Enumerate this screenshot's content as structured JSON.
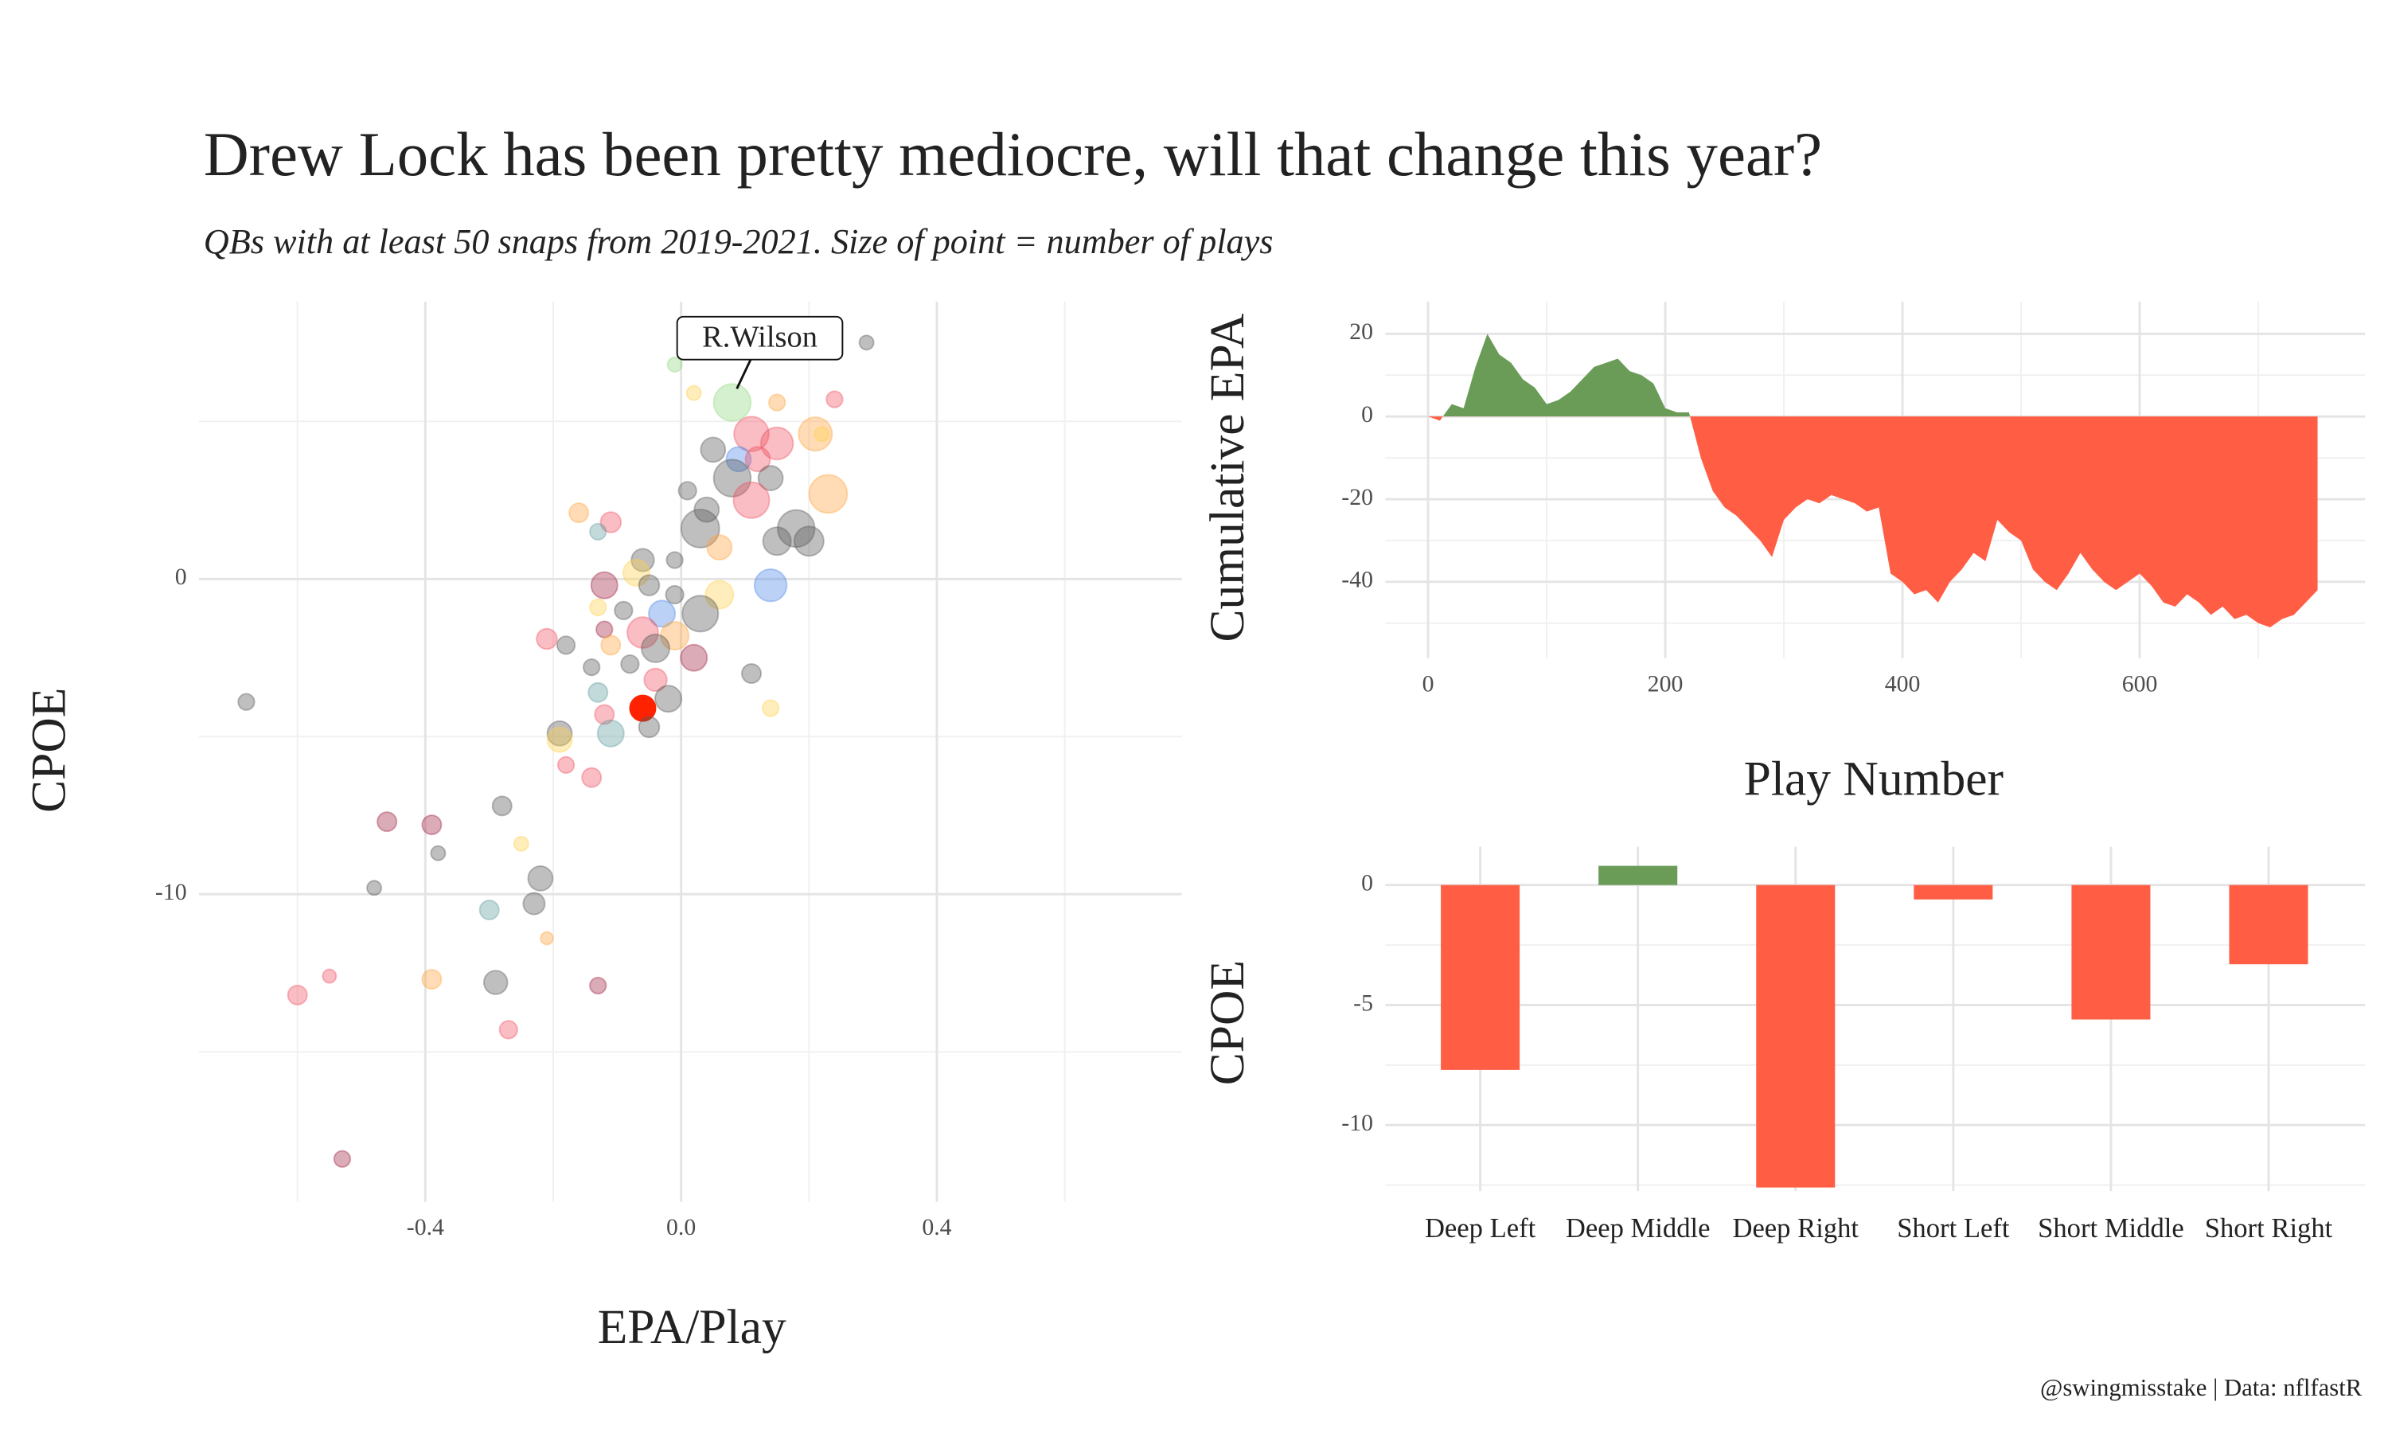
{
  "title": "Drew Lock has been pretty mediocre, will that change this year?",
  "subtitle": "QBs with at least 50 snaps from 2019-2021. Size of point = number of plays",
  "caption": "@swingmisstake | Data: nflfastR",
  "chart_data": [
    {
      "type": "scatter",
      "x_label": "EPA/Play",
      "y_label": "CPOE",
      "xlim": [
        -0.754,
        0.783
      ],
      "ylim": [
        -19.76,
        8.8
      ],
      "xticks": [
        -0.4,
        {
          "value": 0,
          "label": "0.0"
        },
        0.4
      ],
      "x_minor_ticks": [
        -0.6,
        -0.2,
        0.2,
        0.6
      ],
      "yticks": [
        0,
        -10
      ],
      "y_minor_ticks": [
        5,
        -5,
        -15
      ],
      "grid": true,
      "x": [
        0.29,
        -0.01,
        0.08,
        0.02,
        0.15,
        0.24,
        0.21,
        0.22,
        0.11,
        0.15,
        0.05,
        0.09,
        0.12,
        0.08,
        0.14,
        0.23,
        0.01,
        0.11,
        0.04,
        0.03,
        0.18,
        0.2,
        0.15,
        0.06,
        -0.11,
        -0.13,
        -0.16,
        -0.06,
        -0.07,
        -0.01,
        0.14,
        -0.12,
        -0.05,
        -0.01,
        0.06,
        -0.13,
        -0.09,
        0.03,
        -0.03,
        -0.06,
        -0.01,
        -0.12,
        -0.21,
        -0.18,
        -0.11,
        -0.04,
        0.02,
        -0.08,
        -0.14,
        0.11,
        -0.04,
        -0.02,
        -0.13,
        -0.06,
        -0.12,
        0.14,
        -0.05,
        -0.11,
        -0.19,
        -0.19,
        -0.68,
        -0.18,
        -0.14,
        -0.28,
        -0.25,
        -0.46,
        -0.39,
        -0.38,
        -0.22,
        -0.23,
        -0.48,
        -0.3,
        -0.21,
        -0.55,
        -0.39,
        -0.29,
        -0.13,
        -0.6,
        -0.27,
        -0.53
      ],
      "values": [
        7.5,
        6.8,
        5.6,
        5.9,
        5.6,
        5.7,
        4.6,
        4.6,
        4.6,
        4.3,
        4.1,
        3.8,
        3.8,
        3.2,
        3.2,
        2.7,
        2.8,
        2.5,
        2.2,
        1.6,
        1.6,
        1.2,
        1.2,
        1.0,
        1.8,
        1.5,
        2.1,
        0.6,
        0.2,
        0.6,
        -0.2,
        -0.2,
        -0.2,
        -0.5,
        -0.5,
        -0.9,
        -1.0,
        -1.1,
        -1.1,
        -1.7,
        -1.8,
        -1.6,
        -1.9,
        -2.1,
        -2.1,
        -2.2,
        -2.5,
        -2.7,
        -2.8,
        -3.0,
        -3.2,
        -3.8,
        -3.6,
        -4.1,
        -4.3,
        -4.1,
        -4.7,
        -4.9,
        -4.9,
        -5.1,
        -3.9,
        -5.9,
        -6.3,
        -7.2,
        -8.4,
        -7.7,
        -7.8,
        -8.7,
        -9.5,
        -10.3,
        -9.8,
        -10.5,
        -11.4,
        -12.6,
        -12.7,
        -12.8,
        -12.9,
        -13.2,
        -14.3,
        -18.4
      ],
      "sizes": [
        100,
        100,
        1400,
        100,
        150,
        150,
        1100,
        100,
        1200,
        1000,
        500,
        500,
        500,
        1400,
        500,
        1500,
        200,
        1300,
        500,
        1500,
        1400,
        800,
        700,
        500,
        300,
        150,
        250,
        400,
        600,
        150,
        1000,
        600,
        300,
        200,
        700,
        150,
        200,
        1300,
        600,
        900,
        700,
        150,
        300,
        200,
        250,
        700,
        600,
        200,
        150,
        250,
        400,
        600,
        250,
        550,
        250,
        150,
        300,
        600,
        500,
        500,
        150,
        150,
        250,
        250,
        100,
        250,
        250,
        100,
        500,
        350,
        100,
        250,
        60,
        80,
        250,
        450,
        150,
        250,
        200,
        150
      ],
      "colors": [
        "#55555560",
        "#8fd67f60",
        "#8fd67f60",
        "#ffd04a60",
        "#ffa33a60",
        "#f0506060",
        "#ffa33a60",
        "#ffd04a60",
        "#f0506060",
        "#f0506060",
        "#55555560",
        "#4a86e860",
        "#f0506060",
        "#55555560",
        "#55555560",
        "#ffa33a60",
        "#55555560",
        "#f0506060",
        "#55555560",
        "#55555560",
        "#55555560",
        "#55555560",
        "#55555560",
        "#ffa33a60",
        "#f0506060",
        "#5f9ea060",
        "#ffa33a60",
        "#55555560",
        "#ffd04a60",
        "#55555560",
        "#4a86e860",
        "#a0204060",
        "#55555560",
        "#55555560",
        "#ffd04a60",
        "#ffd04a60",
        "#55555560",
        "#55555560",
        "#4a86e860",
        "#f0506060",
        "#ffa33a60",
        "#a0204060",
        "#f0506060",
        "#55555560",
        "#ffa33a60",
        "#55555560",
        "#a0204060",
        "#55555560",
        "#55555560",
        "#55555560",
        "#f0506060",
        "#55555560",
        "#5f9ea060",
        "#ff2200",
        "#f0506060",
        "#ffd04a60",
        "#55555560",
        "#5f9ea060",
        "#55555560",
        "#ffd04a60",
        "#55555560",
        "#f0506060",
        "#f0506060",
        "#55555560",
        "#ffd04a60",
        "#a0204060",
        "#a0204060",
        "#55555560",
        "#55555560",
        "#55555560",
        "#55555560",
        "#5f9ea060",
        "#ffa33a60",
        "#f0506060",
        "#ffa33a60",
        "#55555560",
        "#a0204060",
        "#f0506060",
        "#f0506060",
        "#a0204060"
      ],
      "annotations": [
        {
          "text": "R.Wilson",
          "x": 0.08,
          "y": 5.6
        }
      ]
    },
    {
      "type": "area",
      "x_label": "Play Number",
      "y_label": "Cumulative EPA",
      "xlim": [
        -36,
        790
      ],
      "ylim": [
        -58.5,
        27.8
      ],
      "xticks": [
        0,
        200,
        400,
        600
      ],
      "x_minor_ticks": [
        100,
        300,
        500,
        700
      ],
      "yticks": [
        20,
        0,
        -20,
        -40
      ],
      "y_minor_ticks": [
        10,
        -10,
        -30,
        -50
      ],
      "grid": true,
      "pos_color": "#6a9c58",
      "neg_color": "#ff5e45",
      "x": [
        0,
        10,
        20,
        30,
        40,
        50,
        60,
        70,
        80,
        90,
        100,
        110,
        120,
        130,
        140,
        150,
        160,
        170,
        180,
        190,
        200,
        210,
        220,
        230,
        240,
        250,
        260,
        270,
        280,
        290,
        300,
        310,
        320,
        330,
        340,
        350,
        360,
        370,
        380,
        390,
        400,
        410,
        420,
        430,
        440,
        450,
        460,
        470,
        480,
        490,
        500,
        510,
        520,
        530,
        540,
        550,
        560,
        570,
        580,
        590,
        600,
        610,
        620,
        630,
        640,
        650,
        660,
        670,
        680,
        690,
        700,
        710,
        720,
        730,
        740,
        750
      ],
      "values": [
        0,
        -1,
        3,
        2,
        12,
        20,
        15,
        13,
        9,
        7,
        3,
        4,
        6,
        9,
        12,
        13,
        14,
        11,
        10,
        8,
        2,
        1,
        1,
        -10,
        -18,
        -22,
        -24,
        -27,
        -30,
        -34,
        -25,
        -22,
        -20,
        -21,
        -19,
        -20,
        -21,
        -23,
        -22,
        -38,
        -40,
        -43,
        -42,
        -45,
        -40,
        -37,
        -33,
        -35,
        -25,
        -28,
        -30,
        -37,
        -40,
        -42,
        -38,
        -33,
        -37,
        -40,
        -42,
        -40,
        -38,
        -41,
        -45,
        -46,
        -43,
        -45,
        -48,
        -46,
        -49,
        -48,
        -50,
        -51,
        -49,
        -48,
        -45,
        -42
      ]
    },
    {
      "type": "bar",
      "y_label": "CPOE",
      "categories": [
        "Deep Left",
        "Deep Middle",
        "Deep Right",
        "Short Left",
        "Short Middle",
        "Short Right"
      ],
      "values": [
        -7.7,
        0.8,
        -12.6,
        -0.6,
        -5.6,
        -3.3
      ],
      "ylim": [
        -12.75,
        1.6
      ],
      "yticks": [
        0,
        -5,
        -10
      ],
      "y_minor_ticks": [
        -2.5,
        -7.5,
        -12.5
      ],
      "grid": true,
      "pos_color": "#6a9c58",
      "neg_color": "#ff5e45"
    }
  ]
}
